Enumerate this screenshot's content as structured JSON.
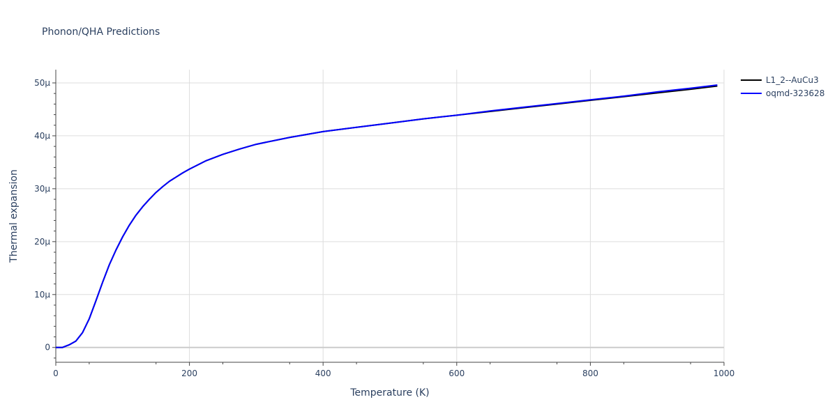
{
  "chart_data": {
    "type": "line",
    "title": "Phonon/QHA Predictions",
    "xlabel": "Temperature (K)",
    "ylabel": "Thermal expansion",
    "xlim": [
      0,
      1000
    ],
    "ylim": [
      -2.8e-06,
      5.25e-05
    ],
    "x_ticks": [
      0,
      200,
      400,
      600,
      800,
      1000
    ],
    "x_tick_labels": [
      "0",
      "200",
      "400",
      "600",
      "800",
      "1000"
    ],
    "y_ticks": [
      0,
      1e-05,
      2e-05,
      3e-05,
      4e-05,
      5e-05
    ],
    "y_tick_labels": [
      "0",
      "10µ",
      "20µ",
      "30µ",
      "40µ",
      "50µ"
    ],
    "grid": true,
    "legend_position": "top-right",
    "series": [
      {
        "name": "L1_2--AuCu3",
        "color": "#000000",
        "x": [
          0,
          10,
          20,
          30,
          40,
          50,
          60,
          70,
          80,
          90,
          100,
          110,
          120,
          130,
          140,
          150,
          160,
          170,
          180,
          190,
          200,
          225,
          250,
          275,
          300,
          350,
          400,
          450,
          500,
          550,
          600,
          650,
          700,
          750,
          800,
          850,
          900,
          950,
          990
        ],
        "y": [
          0,
          0.0,
          5e-07,
          1.2e-06,
          2.8e-06,
          5.4e-06,
          8.8e-06,
          1.23e-05,
          1.56e-05,
          1.84e-05,
          2.09e-05,
          2.31e-05,
          2.5e-05,
          2.66e-05,
          2.8e-05,
          2.93e-05,
          3.04e-05,
          3.14e-05,
          3.22e-05,
          3.3e-05,
          3.37e-05,
          3.53e-05,
          3.65e-05,
          3.75e-05,
          3.84e-05,
          3.97e-05,
          4.08e-05,
          4.16e-05,
          4.24e-05,
          4.32e-05,
          4.39e-05,
          4.46e-05,
          4.53e-05,
          4.6e-05,
          4.67e-05,
          4.74e-05,
          4.81e-05,
          4.88e-05,
          4.94e-05
        ]
      },
      {
        "name": "oqmd-323628",
        "color": "#0000ff",
        "x": [
          0,
          10,
          20,
          30,
          40,
          50,
          60,
          70,
          80,
          90,
          100,
          110,
          120,
          130,
          140,
          150,
          160,
          170,
          180,
          190,
          200,
          225,
          250,
          275,
          300,
          350,
          400,
          450,
          500,
          550,
          600,
          650,
          700,
          750,
          800,
          850,
          900,
          950,
          990
        ],
        "y": [
          0,
          0.0,
          5e-07,
          1.2e-06,
          2.8e-06,
          5.4e-06,
          8.8e-06,
          1.23e-05,
          1.56e-05,
          1.84e-05,
          2.09e-05,
          2.31e-05,
          2.5e-05,
          2.66e-05,
          2.8e-05,
          2.93e-05,
          3.04e-05,
          3.14e-05,
          3.22e-05,
          3.3e-05,
          3.37e-05,
          3.53e-05,
          3.65e-05,
          3.75e-05,
          3.84e-05,
          3.97e-05,
          4.08e-05,
          4.16e-05,
          4.24e-05,
          4.32e-05,
          4.39e-05,
          4.47e-05,
          4.54e-05,
          4.61e-05,
          4.68e-05,
          4.75e-05,
          4.83e-05,
          4.9e-05,
          4.96e-05
        ]
      }
    ]
  }
}
